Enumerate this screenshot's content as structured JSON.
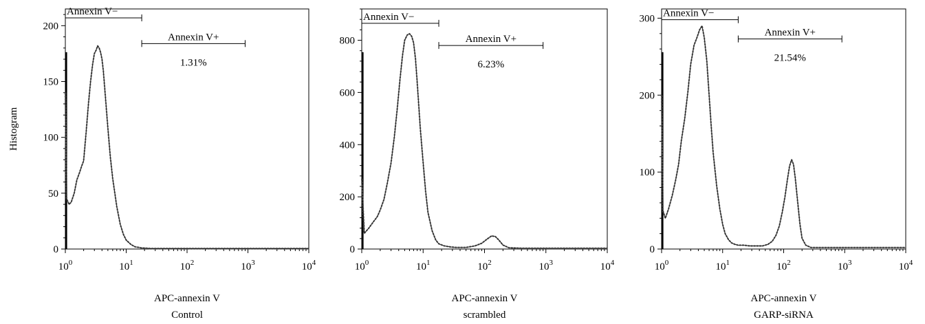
{
  "chart_data": [
    {
      "type": "line",
      "title": "",
      "ylabel": "Histogram",
      "xlabel": "APC-annexin V",
      "subtitle": "Control",
      "x_scale": "log",
      "xlim": [
        1,
        10000
      ],
      "ylim": [
        0,
        215
      ],
      "y_ticks": [
        0,
        50,
        100,
        150,
        200
      ],
      "y_tick_labels": [
        "0",
        "50",
        "100",
        "150",
        "200"
      ],
      "x_ticks": [
        1,
        10,
        100,
        1000,
        10000
      ],
      "x_tick_labels": [
        {
          "base": "10",
          "exp": "0"
        },
        {
          "base": "10",
          "exp": "1"
        },
        {
          "base": "10",
          "exp": "2"
        },
        {
          "base": "10",
          "exp": "3"
        },
        {
          "base": "10",
          "exp": "4"
        }
      ],
      "gates": [
        {
          "label": "Annexin V−",
          "from": 1,
          "to": 18,
          "level": 207
        },
        {
          "label": "Annexin V+",
          "from": 18,
          "to": 900,
          "level": 184,
          "value_label": "1.31%"
        }
      ],
      "series": [
        {
          "x": [
            1.0,
            1.05,
            1.15,
            1.25,
            1.4,
            1.55,
            1.7,
            1.85,
            2.0,
            2.2,
            2.4,
            2.6,
            2.8,
            3.0,
            3.2,
            3.4,
            3.6,
            3.8,
            4.0,
            4.2,
            4.5,
            5.0,
            5.5,
            6.0,
            7.0,
            8.0,
            9.0,
            10.0,
            12.0,
            14.0,
            16.0,
            18.0,
            25.0,
            100.0,
            1000.0,
            10000.0
          ],
          "y": [
            140,
            45,
            40,
            42,
            50,
            62,
            68,
            74,
            79,
            105,
            130,
            150,
            165,
            175,
            178,
            182,
            180,
            176,
            170,
            160,
            140,
            108,
            82,
            63,
            38,
            22,
            13,
            8,
            4,
            2,
            1.5,
            1,
            0.5,
            0.5,
            0.5,
            0.5
          ]
        }
      ]
    },
    {
      "type": "line",
      "title": "",
      "ylabel": "",
      "xlabel": "APC-annexin V",
      "subtitle": "scrambled",
      "x_scale": "log",
      "xlim": [
        1,
        10000
      ],
      "ylim": [
        0,
        920
      ],
      "y_ticks": [
        0,
        200,
        400,
        600,
        800
      ],
      "y_tick_labels": [
        "0",
        "200",
        "400",
        "600",
        "800"
      ],
      "x_ticks": [
        1,
        10,
        100,
        1000,
        10000
      ],
      "x_tick_labels": [
        {
          "base": "10",
          "exp": "0"
        },
        {
          "base": "10",
          "exp": "1"
        },
        {
          "base": "10",
          "exp": "2"
        },
        {
          "base": "10",
          "exp": "3"
        },
        {
          "base": "10",
          "exp": "4"
        }
      ],
      "gates": [
        {
          "label": "Annexin V−",
          "from": 1,
          "to": 18,
          "level": 865
        },
        {
          "label": "Annexin V+",
          "from": 18,
          "to": 900,
          "level": 780,
          "value_label": "6.23%"
        }
      ],
      "series": [
        {
          "x": [
            1.0,
            1.1,
            1.3,
            1.5,
            1.8,
            2.0,
            2.3,
            2.6,
            3.0,
            3.4,
            3.8,
            4.2,
            4.6,
            5.0,
            5.5,
            6.0,
            6.5,
            7.0,
            7.5,
            8.0,
            9.0,
            10.0,
            11.0,
            12.0,
            14.0,
            16.0,
            18.0,
            22.0,
            28.0,
            35.0,
            50.0,
            70.0,
            90.0,
            110.0,
            130.0,
            150.0,
            170.0,
            200.0,
            250.0,
            400.0,
            1000.0,
            10000.0
          ],
          "y": [
            270,
            60,
            80,
            100,
            125,
            150,
            190,
            250,
            330,
            430,
            540,
            650,
            740,
            800,
            820,
            825,
            815,
            790,
            730,
            640,
            460,
            330,
            220,
            140,
            70,
            35,
            20,
            12,
            8,
            6,
            6,
            12,
            22,
            38,
            50,
            48,
            35,
            15,
            5,
            3,
            3,
            3
          ]
        }
      ]
    },
    {
      "type": "line",
      "title": "",
      "ylabel": "",
      "xlabel": "APC-annexin V",
      "subtitle": "GARP-siRNA",
      "x_scale": "log",
      "xlim": [
        1,
        10000
      ],
      "ylim": [
        0,
        312
      ],
      "y_ticks": [
        0,
        100,
        200,
        300
      ],
      "y_tick_labels": [
        "0",
        "100",
        "200",
        "300"
      ],
      "x_ticks": [
        1,
        10,
        100,
        1000,
        10000
      ],
      "x_tick_labels": [
        {
          "base": "10",
          "exp": "0"
        },
        {
          "base": "10",
          "exp": "1"
        },
        {
          "base": "10",
          "exp": "2"
        },
        {
          "base": "10",
          "exp": "3"
        },
        {
          "base": "10",
          "exp": "4"
        }
      ],
      "gates": [
        {
          "label": "Annexin V−",
          "from": 1,
          "to": 18,
          "level": 298
        },
        {
          "label": "Annexin V+",
          "from": 18,
          "to": 900,
          "level": 273,
          "value_label": "21.54%"
        }
      ],
      "series": [
        {
          "x": [
            1.0,
            1.05,
            1.15,
            1.3,
            1.5,
            1.7,
            1.9,
            2.1,
            2.4,
            2.7,
            3.0,
            3.4,
            3.8,
            4.2,
            4.6,
            5.0,
            5.5,
            6.0,
            6.5,
            7.0,
            8.0,
            9.0,
            10.0,
            11.0,
            12.5,
            14.0,
            16.0,
            18.0,
            22.0,
            28.0,
            35.0,
            45.0,
            55.0,
            65.0,
            75.0,
            85.0,
            95.0,
            105.0,
            115.0,
            125.0,
            135.0,
            145.0,
            155.0,
            170.0,
            185.0,
            200.0,
            230.0,
            280.0,
            400.0,
            1000.0,
            10000.0
          ],
          "y": [
            200,
            50,
            40,
            52,
            70,
            90,
            110,
            140,
            170,
            205,
            240,
            265,
            275,
            285,
            290,
            275,
            245,
            200,
            160,
            125,
            82,
            52,
            32,
            20,
            12,
            8,
            6,
            5,
            5,
            4,
            4,
            4,
            6,
            10,
            18,
            30,
            48,
            68,
            90,
            108,
            116,
            110,
            92,
            60,
            32,
            14,
            5,
            2,
            2,
            2,
            2
          ]
        }
      ]
    }
  ]
}
